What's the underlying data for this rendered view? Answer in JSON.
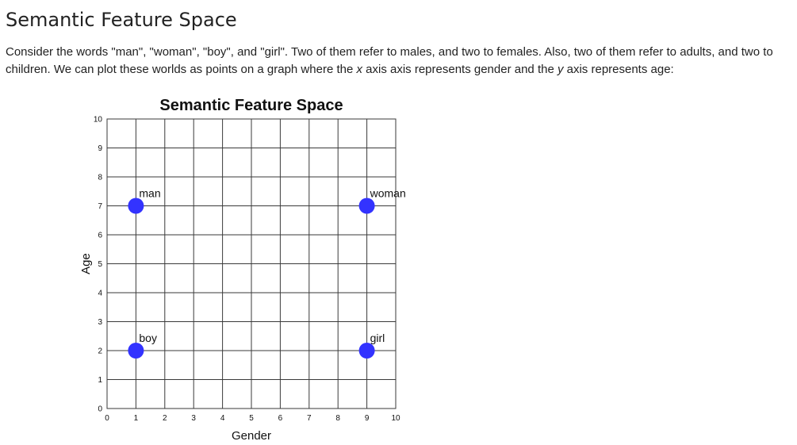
{
  "page": {
    "heading": "Semantic Feature Space",
    "intro": {
      "part1": "Consider the words \"man\", \"woman\", \"boy\", and \"girl\". Two of them refer to males, and two to females. Also, two of them refer to adults, and two to children. We can plot these worlds as points on a graph where the ",
      "x_var": "x",
      "part2": " axis axis represents gender and the ",
      "y_var": "y",
      "part3": " axis represents age:"
    }
  },
  "chart_data": {
    "type": "scatter",
    "title": "Semantic Feature Space",
    "xlabel": "Gender",
    "ylabel": "Age",
    "xlim": [
      0,
      10
    ],
    "ylim": [
      0,
      10
    ],
    "xticks": [
      0,
      1,
      2,
      3,
      4,
      5,
      6,
      7,
      8,
      9,
      10
    ],
    "yticks": [
      0,
      1,
      2,
      3,
      4,
      5,
      6,
      7,
      8,
      9,
      10
    ],
    "grid": true,
    "marker_color": "#3333ff",
    "points": [
      {
        "label": "man",
        "x": 1,
        "y": 7
      },
      {
        "label": "woman",
        "x": 9,
        "y": 7
      },
      {
        "label": "boy",
        "x": 1,
        "y": 2
      },
      {
        "label": "girl",
        "x": 9,
        "y": 2
      }
    ]
  }
}
